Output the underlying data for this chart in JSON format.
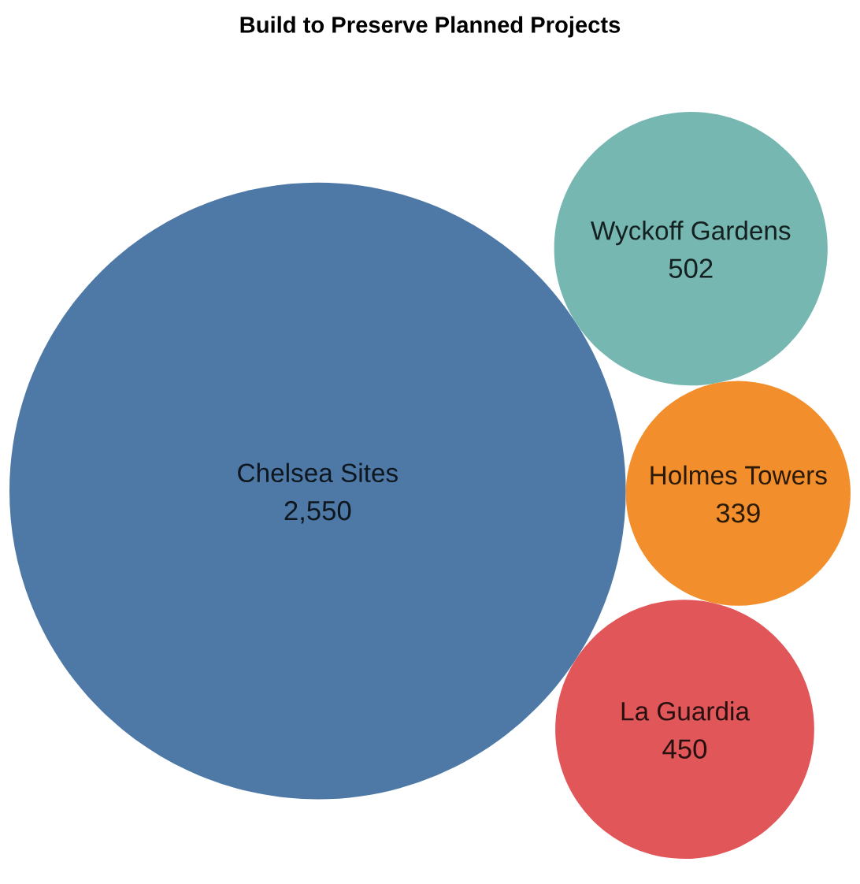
{
  "chart_data": {
    "type": "other",
    "title": "Build to Preserve Planned Projects",
    "categories": [
      "Chelsea Sites",
      "Wyckoff Gardens",
      "Holmes Towers",
      "La Guardia"
    ],
    "values": [
      2550,
      502,
      339,
      450
    ],
    "colors": [
      "#4e79a7",
      "#76b7b2",
      "#f28e2b",
      "#e15759"
    ],
    "value_labels": [
      "2,550",
      "502",
      "339",
      "450"
    ]
  }
}
